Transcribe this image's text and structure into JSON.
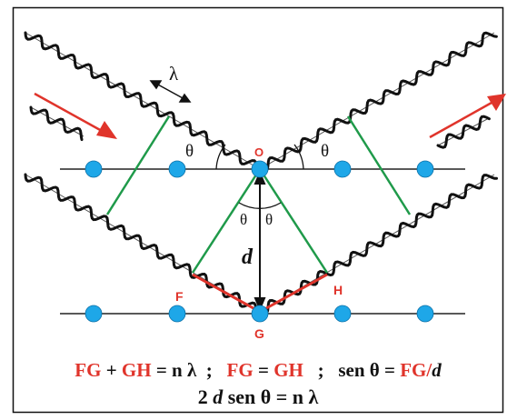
{
  "diagram": {
    "labels": {
      "wavelength": "λ",
      "theta": "θ",
      "O": "O",
      "F": "F",
      "G": "G",
      "H": "H",
      "d": "d"
    },
    "equation_line_1": {
      "part1": "FG",
      "part2": " + ",
      "part3": "GH",
      "part4": " = n λ  ;   ",
      "part5": "FG",
      "part6": " = ",
      "part7": "GH",
      "part8": "   ;   sen θ = ",
      "part9": "FG",
      "part10": "/",
      "part11": "d"
    },
    "equation_line_2": {
      "part1": "2 ",
      "part2": "d",
      "part3": " sen θ = n λ"
    },
    "colors": {
      "arrow": "#e0342b",
      "path_difference": "#e0342b",
      "wavefront": "#1f9a4a",
      "atom": "#1ea7e8",
      "wave": "#111111",
      "equation_red": "#e0342b",
      "equation_black": "#111111"
    },
    "rows": [
      {
        "name": "top-row",
        "atoms": 5
      },
      {
        "name": "bottom-row",
        "atoms": 5
      }
    ]
  }
}
